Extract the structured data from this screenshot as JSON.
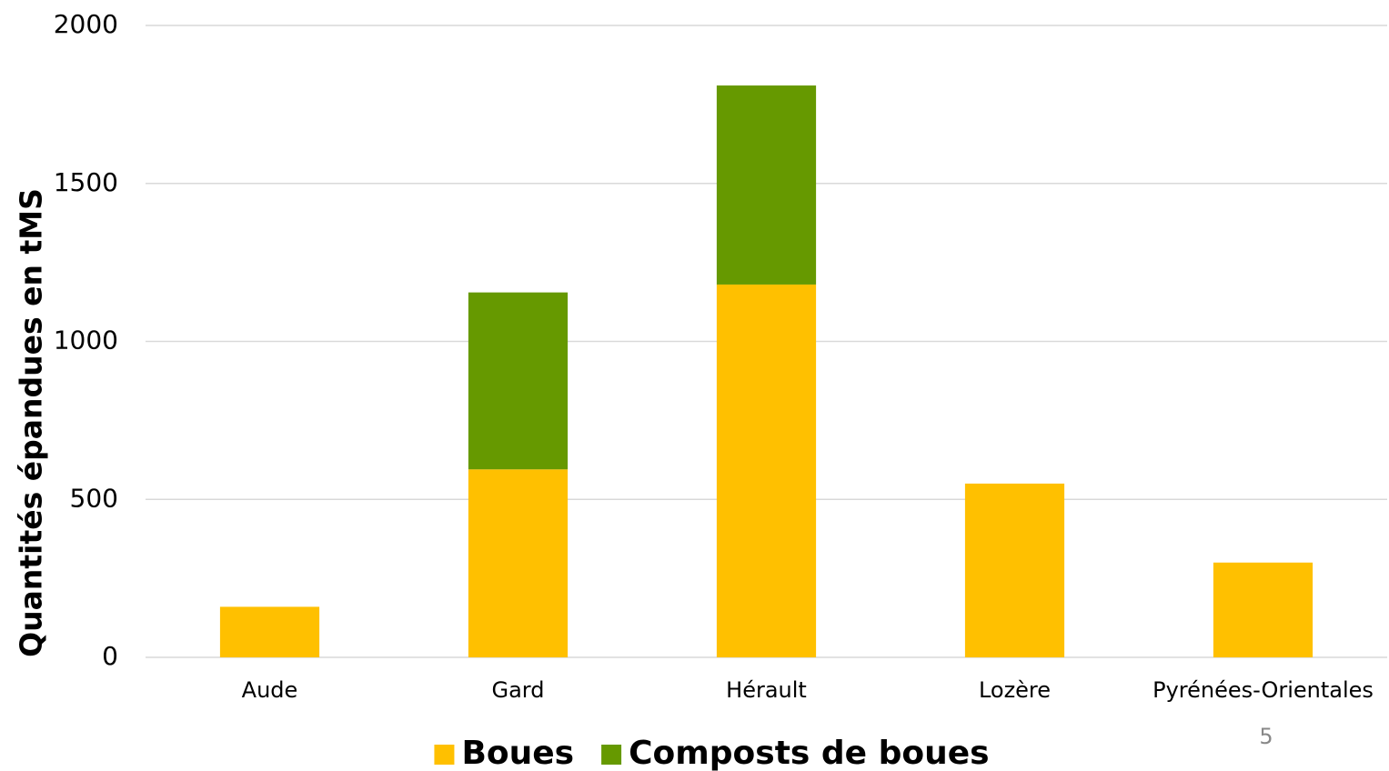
{
  "chart_data": {
    "type": "stacked_bar",
    "y_label": "Quantités épandues en tMS",
    "categories": [
      "Aude",
      "Gard",
      "Hérault",
      "Lozère",
      "Pyrénées-Orientales"
    ],
    "series": [
      {
        "name": "Boues",
        "color": "#FFC000",
        "values": [
          160,
          595,
          1180,
          550,
          300
        ]
      },
      {
        "name": "Composts de boues",
        "color": "#669900",
        "values": [
          0,
          560,
          630,
          0,
          0
        ]
      }
    ],
    "ylim": [
      0,
      2000
    ],
    "yticks": [
      0,
      500,
      1000,
      1500,
      2000
    ],
    "grid": true,
    "legend": "bottom"
  },
  "page_number": "5"
}
